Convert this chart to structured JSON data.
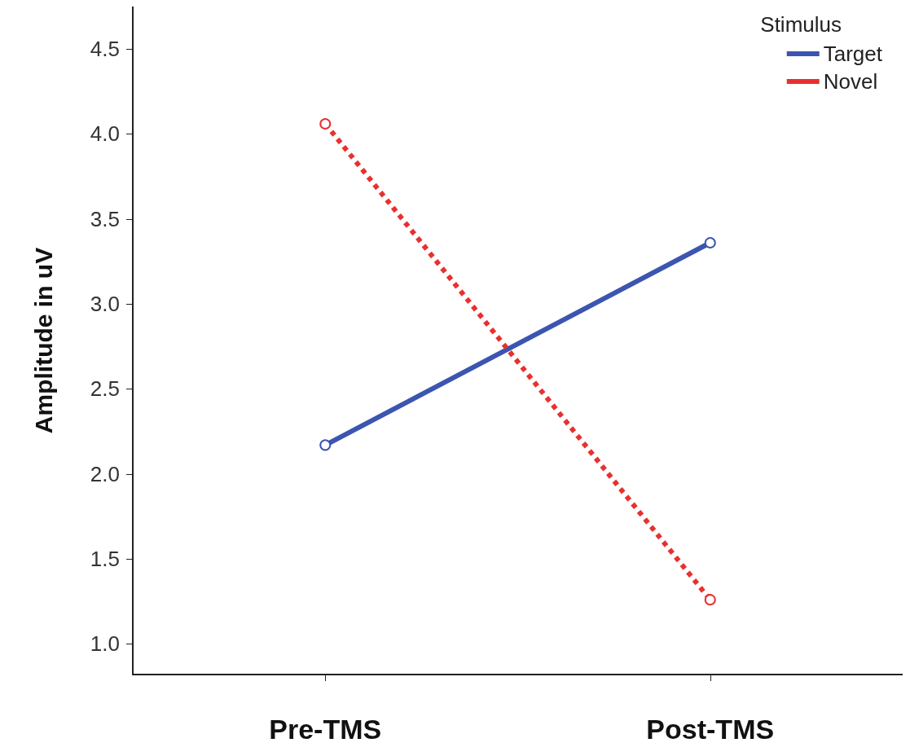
{
  "chart_data": {
    "type": "line",
    "ylabel": "Amplitude in uV",
    "legend_title": "Stimulus",
    "categories": [
      "Pre-TMS",
      "Post-TMS"
    ],
    "series": [
      {
        "name": "Target",
        "color": "#3b55b0",
        "values": [
          2.17,
          3.36
        ],
        "line_style": "solid"
      },
      {
        "name": "Novel",
        "color": "#e8302f",
        "values": [
          4.06,
          1.26
        ],
        "line_style": "dotted"
      }
    ],
    "ylim": [
      0.82,
      4.75
    ],
    "yticks": [
      {
        "value": 1,
        "label": "1.0"
      },
      1.5,
      {
        "value": 2,
        "label": "2.0"
      },
      2.5,
      {
        "value": 3,
        "label": "3.0"
      },
      3.5,
      {
        "value": 4,
        "label": "4.0"
      },
      4.5
    ],
    "grid": false,
    "legend": "top right",
    "marker": "circle"
  }
}
